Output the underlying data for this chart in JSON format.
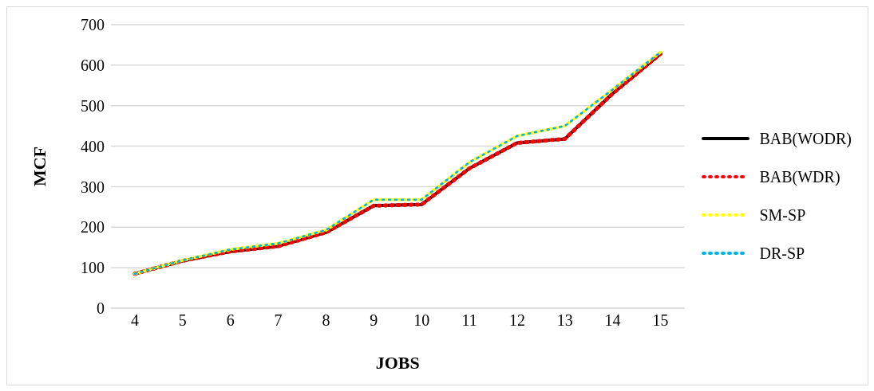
{
  "chart_data": {
    "type": "line",
    "xlabel": "JOBS",
    "ylabel": "MCF",
    "categories": [
      "4",
      "5",
      "6",
      "7",
      "8",
      "9",
      "10",
      "11",
      "12",
      "13",
      "14",
      "15"
    ],
    "series": [
      {
        "name": "BAB(WODR)",
        "color": "#000000",
        "line_style": "solid",
        "values": [
          85,
          117,
          140,
          153,
          187,
          253,
          256,
          345,
          408,
          418,
          530,
          628
        ]
      },
      {
        "name": "BAB(WDR)",
        "color": "#ff0000",
        "line_style": "dotted",
        "values": [
          85,
          117,
          140,
          153,
          187,
          253,
          256,
          345,
          408,
          418,
          530,
          628
        ]
      },
      {
        "name": "SM-SP",
        "color": "#ffff00",
        "line_style": "dotted",
        "values": [
          85,
          118,
          145,
          160,
          193,
          268,
          268,
          360,
          425,
          450,
          540,
          632
        ]
      },
      {
        "name": "DR-SP",
        "color": "#00b0f0",
        "line_style": "dotted",
        "values": [
          85,
          118,
          145,
          160,
          193,
          268,
          268,
          360,
          425,
          450,
          540,
          632
        ]
      }
    ],
    "ylim": [
      0,
      700
    ],
    "yticks": [
      0,
      100,
      200,
      300,
      400,
      500,
      600,
      700
    ],
    "grid": "y",
    "legend": "right",
    "marker": "none"
  }
}
